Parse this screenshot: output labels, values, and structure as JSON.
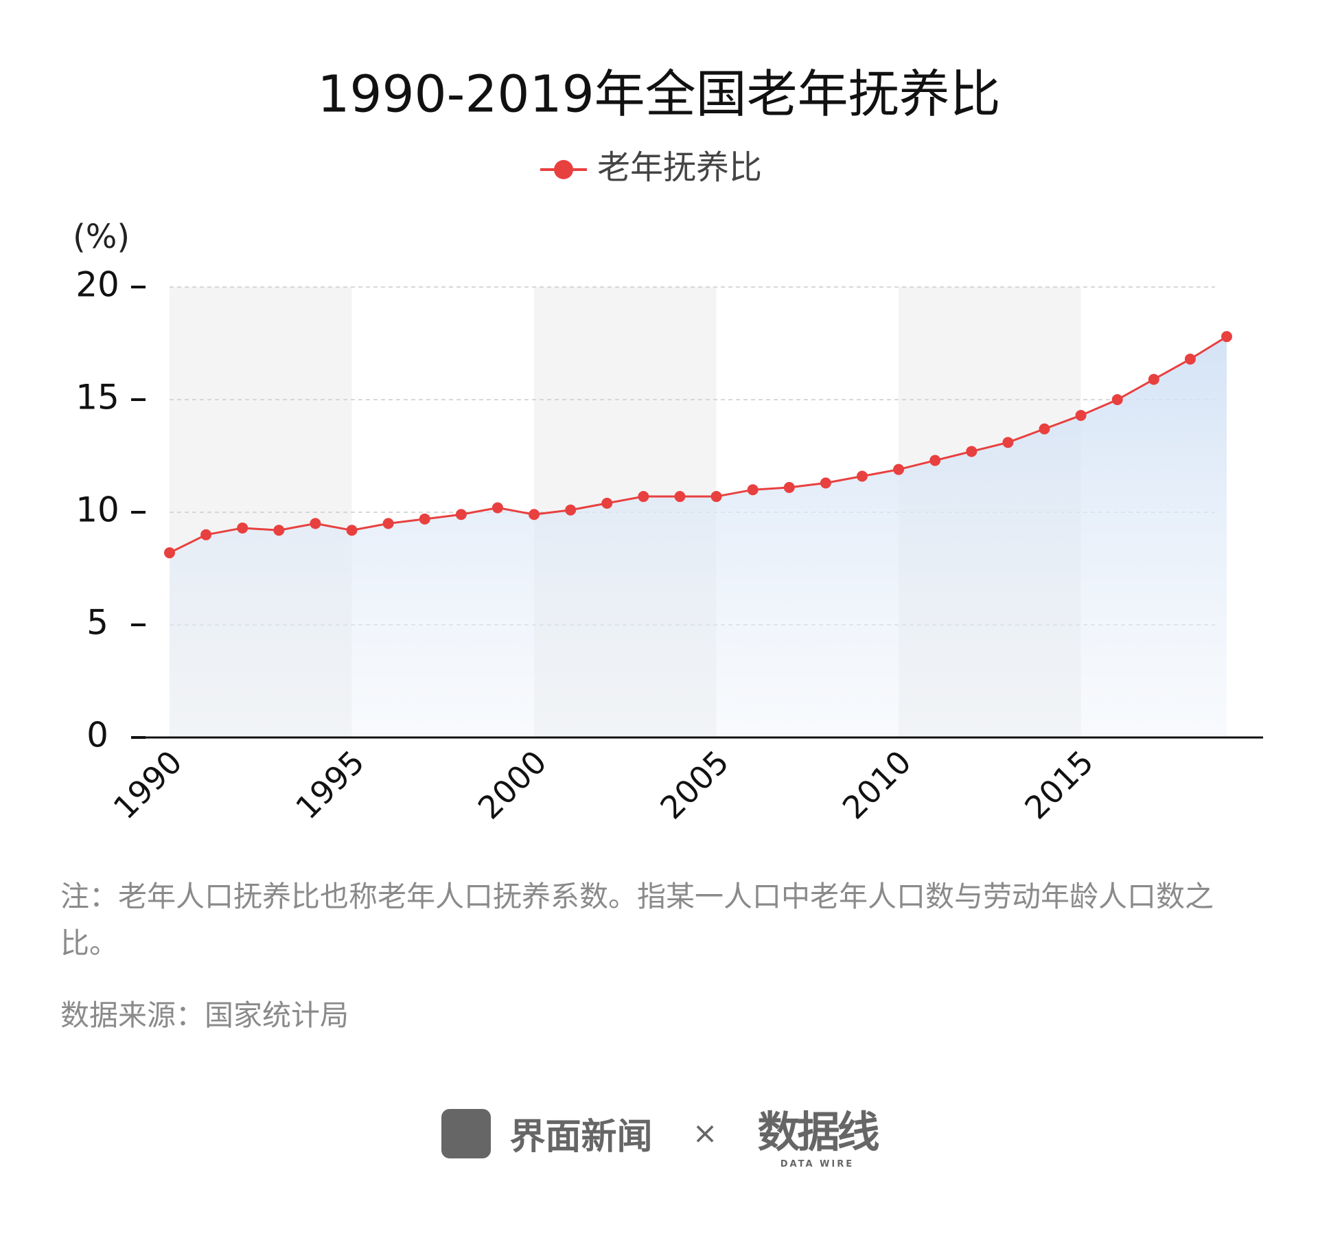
{
  "chart_data": {
    "type": "line",
    "title": "1990-2019年全国老年抚养比",
    "y_label": "(%)",
    "x": [
      1990,
      1991,
      1992,
      1993,
      1994,
      1995,
      1996,
      1997,
      1998,
      1999,
      2000,
      2001,
      2002,
      2003,
      2004,
      2005,
      2006,
      2007,
      2008,
      2009,
      2010,
      2011,
      2012,
      2013,
      2014,
      2015,
      2016,
      2017,
      2018,
      2019
    ],
    "series": [
      {
        "name": "老年抚养比",
        "color": "#e8403f",
        "values": [
          8.2,
          9.0,
          9.3,
          9.2,
          9.5,
          9.2,
          9.5,
          9.7,
          9.9,
          10.2,
          9.9,
          10.1,
          10.4,
          10.7,
          10.7,
          10.7,
          11.0,
          11.1,
          11.3,
          11.6,
          11.9,
          12.3,
          12.7,
          13.1,
          13.7,
          14.3,
          15.0,
          15.9,
          16.8,
          17.8
        ]
      }
    ],
    "xlim": [
      1990,
      2019
    ],
    "xticks": [
      1990,
      1995,
      2000,
      2005,
      2010,
      2015
    ],
    "ylim": [
      0,
      20
    ],
    "yticks": [
      0,
      5,
      10,
      15,
      20
    ],
    "grid": true,
    "note": "注：老年人口抚养比也称老年人口抚养系数。指某一人口中老年人口数与劳动年龄人口数之比。",
    "source": "数据来源：国家统计局"
  },
  "footer": {
    "brand": "界面新闻",
    "times": "×",
    "partner": "数据线",
    "partner_sub": "DATA WIRE"
  }
}
